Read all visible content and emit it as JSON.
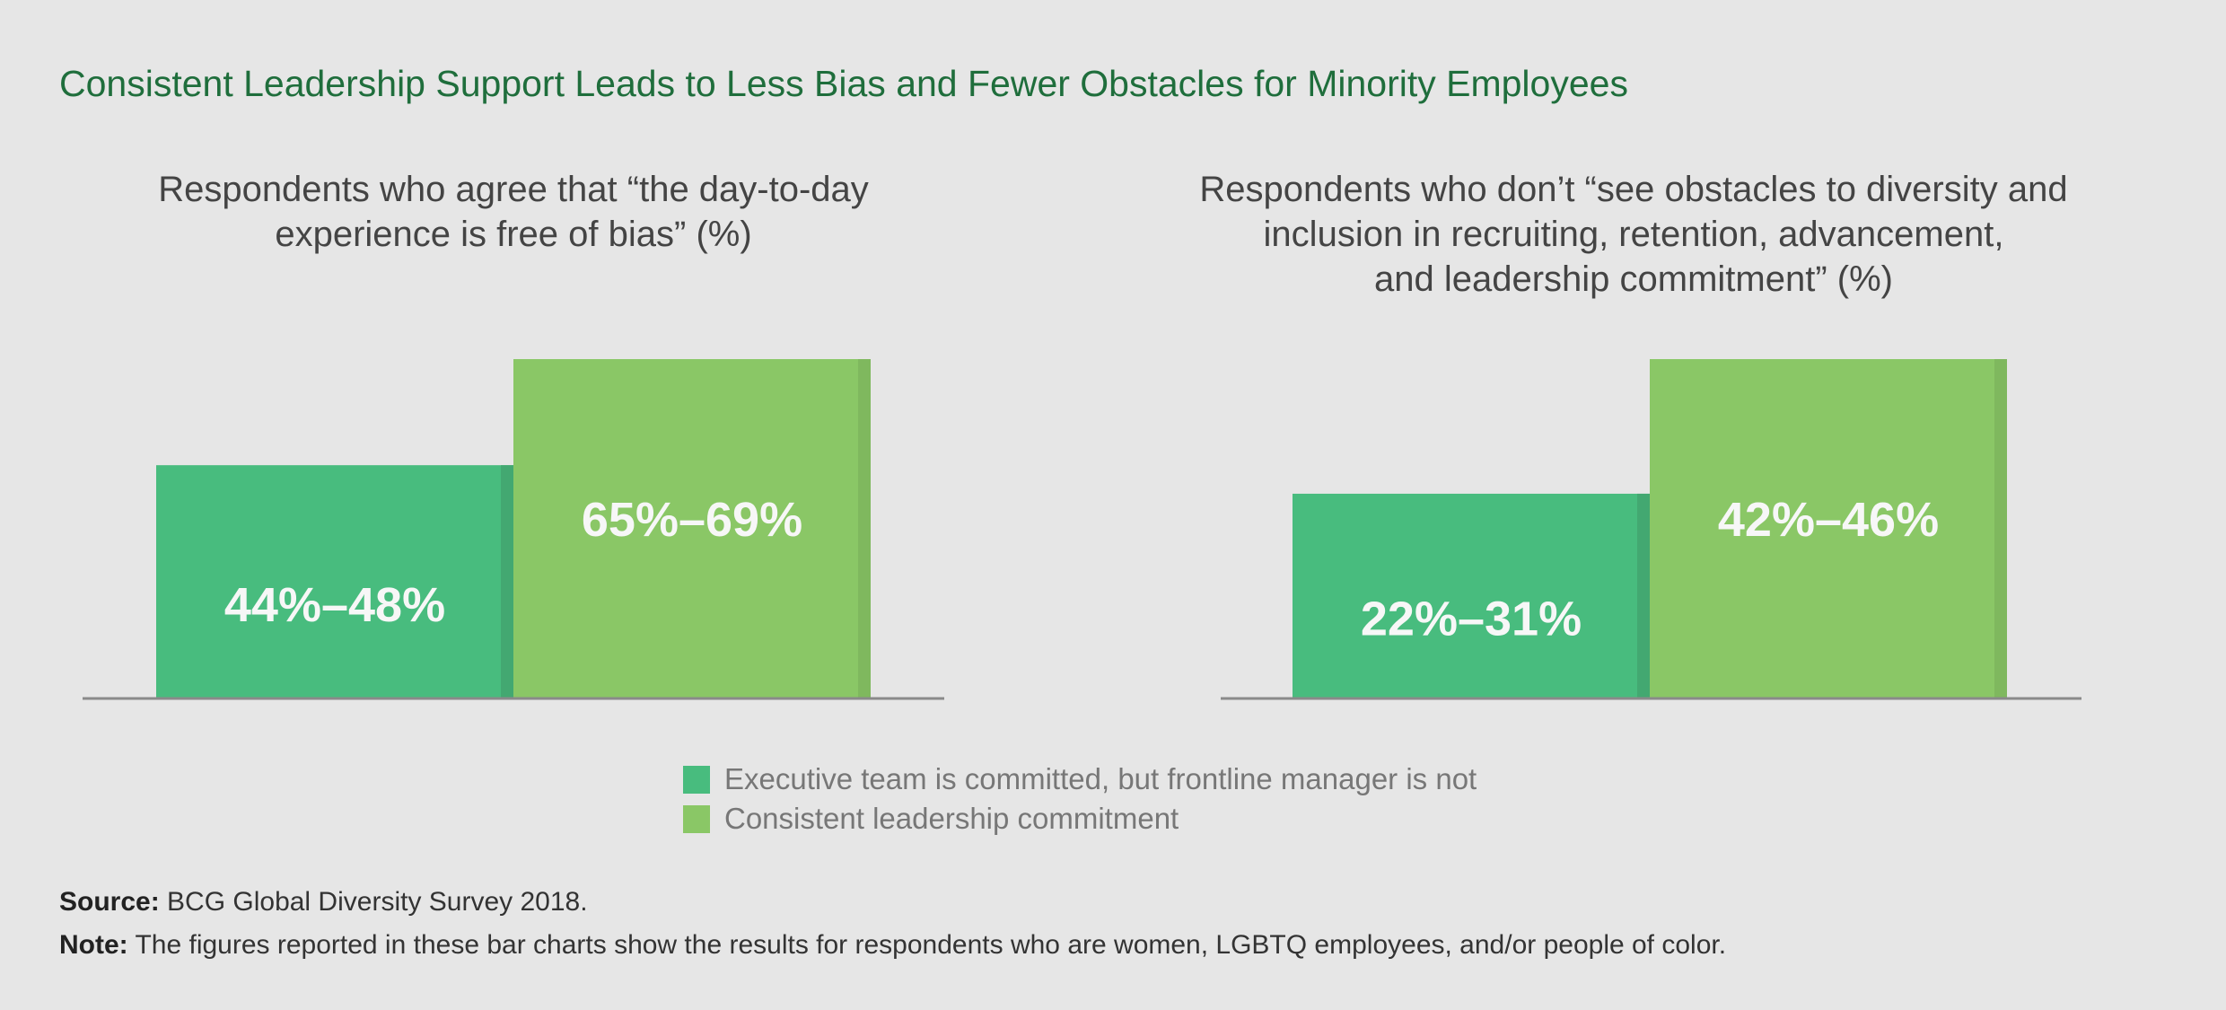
{
  "title": "Consistent Leadership Support Leads to Less Bias and Fewer Obstacles for Minority Employees",
  "colors": {
    "executive_only": "#48bc7e",
    "consistent": "#8ac766",
    "background": "#e6e6e6",
    "title": "#1f6e3c"
  },
  "chart_data": [
    {
      "type": "bar",
      "title": "Respondents who agree that “the day-to-day\nexperience is free of bias” (%)",
      "series": [
        {
          "name": "Executive team is committed, but frontline manager is not",
          "range": [
            44,
            48
          ],
          "label": "44%–48%"
        },
        {
          "name": "Consistent leadership commitment",
          "range": [
            65,
            69
          ],
          "label": "65%–69%"
        }
      ]
    },
    {
      "type": "bar",
      "title": "Respondents who don’t “see obstacles to diversity and\ninclusion in recruiting, retention, advancement,\nand leadership commitment” (%)",
      "series": [
        {
          "name": "Executive team is committed, but frontline manager is not",
          "range": [
            22,
            31
          ],
          "label": "22%–31%"
        },
        {
          "name": "Consistent leadership commitment",
          "range": [
            42,
            46
          ],
          "label": "42%–46%"
        }
      ]
    }
  ],
  "legend": [
    "Executive team is committed, but frontline manager is not",
    "Consistent leadership commitment"
  ],
  "source": {
    "label": "Source:",
    "text": " BCG Global Diversity Survey 2018."
  },
  "note": {
    "label": "Note:",
    "text": " The figures reported in these bar charts show the results for respondents who are women, LGBTQ employees, and/or people of color."
  }
}
